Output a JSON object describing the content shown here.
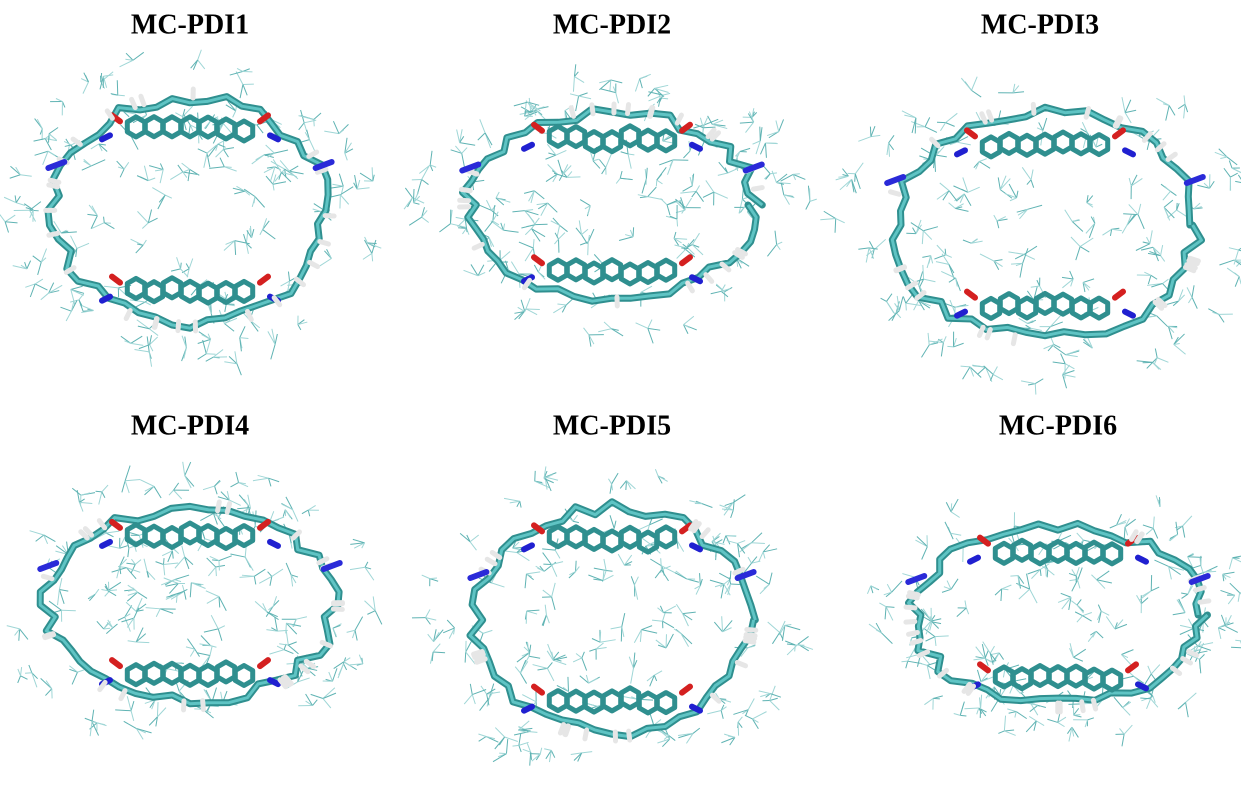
{
  "panels": [
    {
      "title": "MC-PDI1"
    },
    {
      "title": "MC-PDI2"
    },
    {
      "title": "MC-PDI3"
    },
    {
      "title": "MC-PDI4"
    },
    {
      "title": "MC-PDI5"
    },
    {
      "title": "MC-PDI6"
    }
  ]
}
